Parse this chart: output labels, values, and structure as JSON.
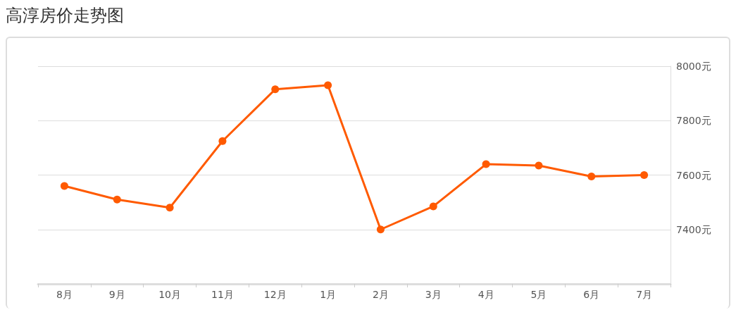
{
  "chart_data": {
    "type": "line",
    "title": "高淳房价走势图",
    "categories": [
      "8月",
      "9月",
      "10月",
      "11月",
      "12月",
      "1月",
      "2月",
      "3月",
      "4月",
      "5月",
      "6月",
      "7月"
    ],
    "series": [
      {
        "color": "#ff5a00",
        "values": [
          7560,
          7510,
          7480,
          7725,
          7915,
          7930,
          7400,
          7485,
          7640,
          7635,
          7595,
          7600
        ]
      }
    ],
    "ylim": [
      7200,
      8000
    ],
    "yticks": [
      {
        "value": 7400,
        "label": "7400元"
      },
      {
        "value": 7600,
        "label": "7600元"
      },
      {
        "value": 7800,
        "label": "7800元"
      },
      {
        "value": 8000,
        "label": "8000元"
      }
    ],
    "grid": "y",
    "marker": "circle",
    "line_style": "solid"
  }
}
